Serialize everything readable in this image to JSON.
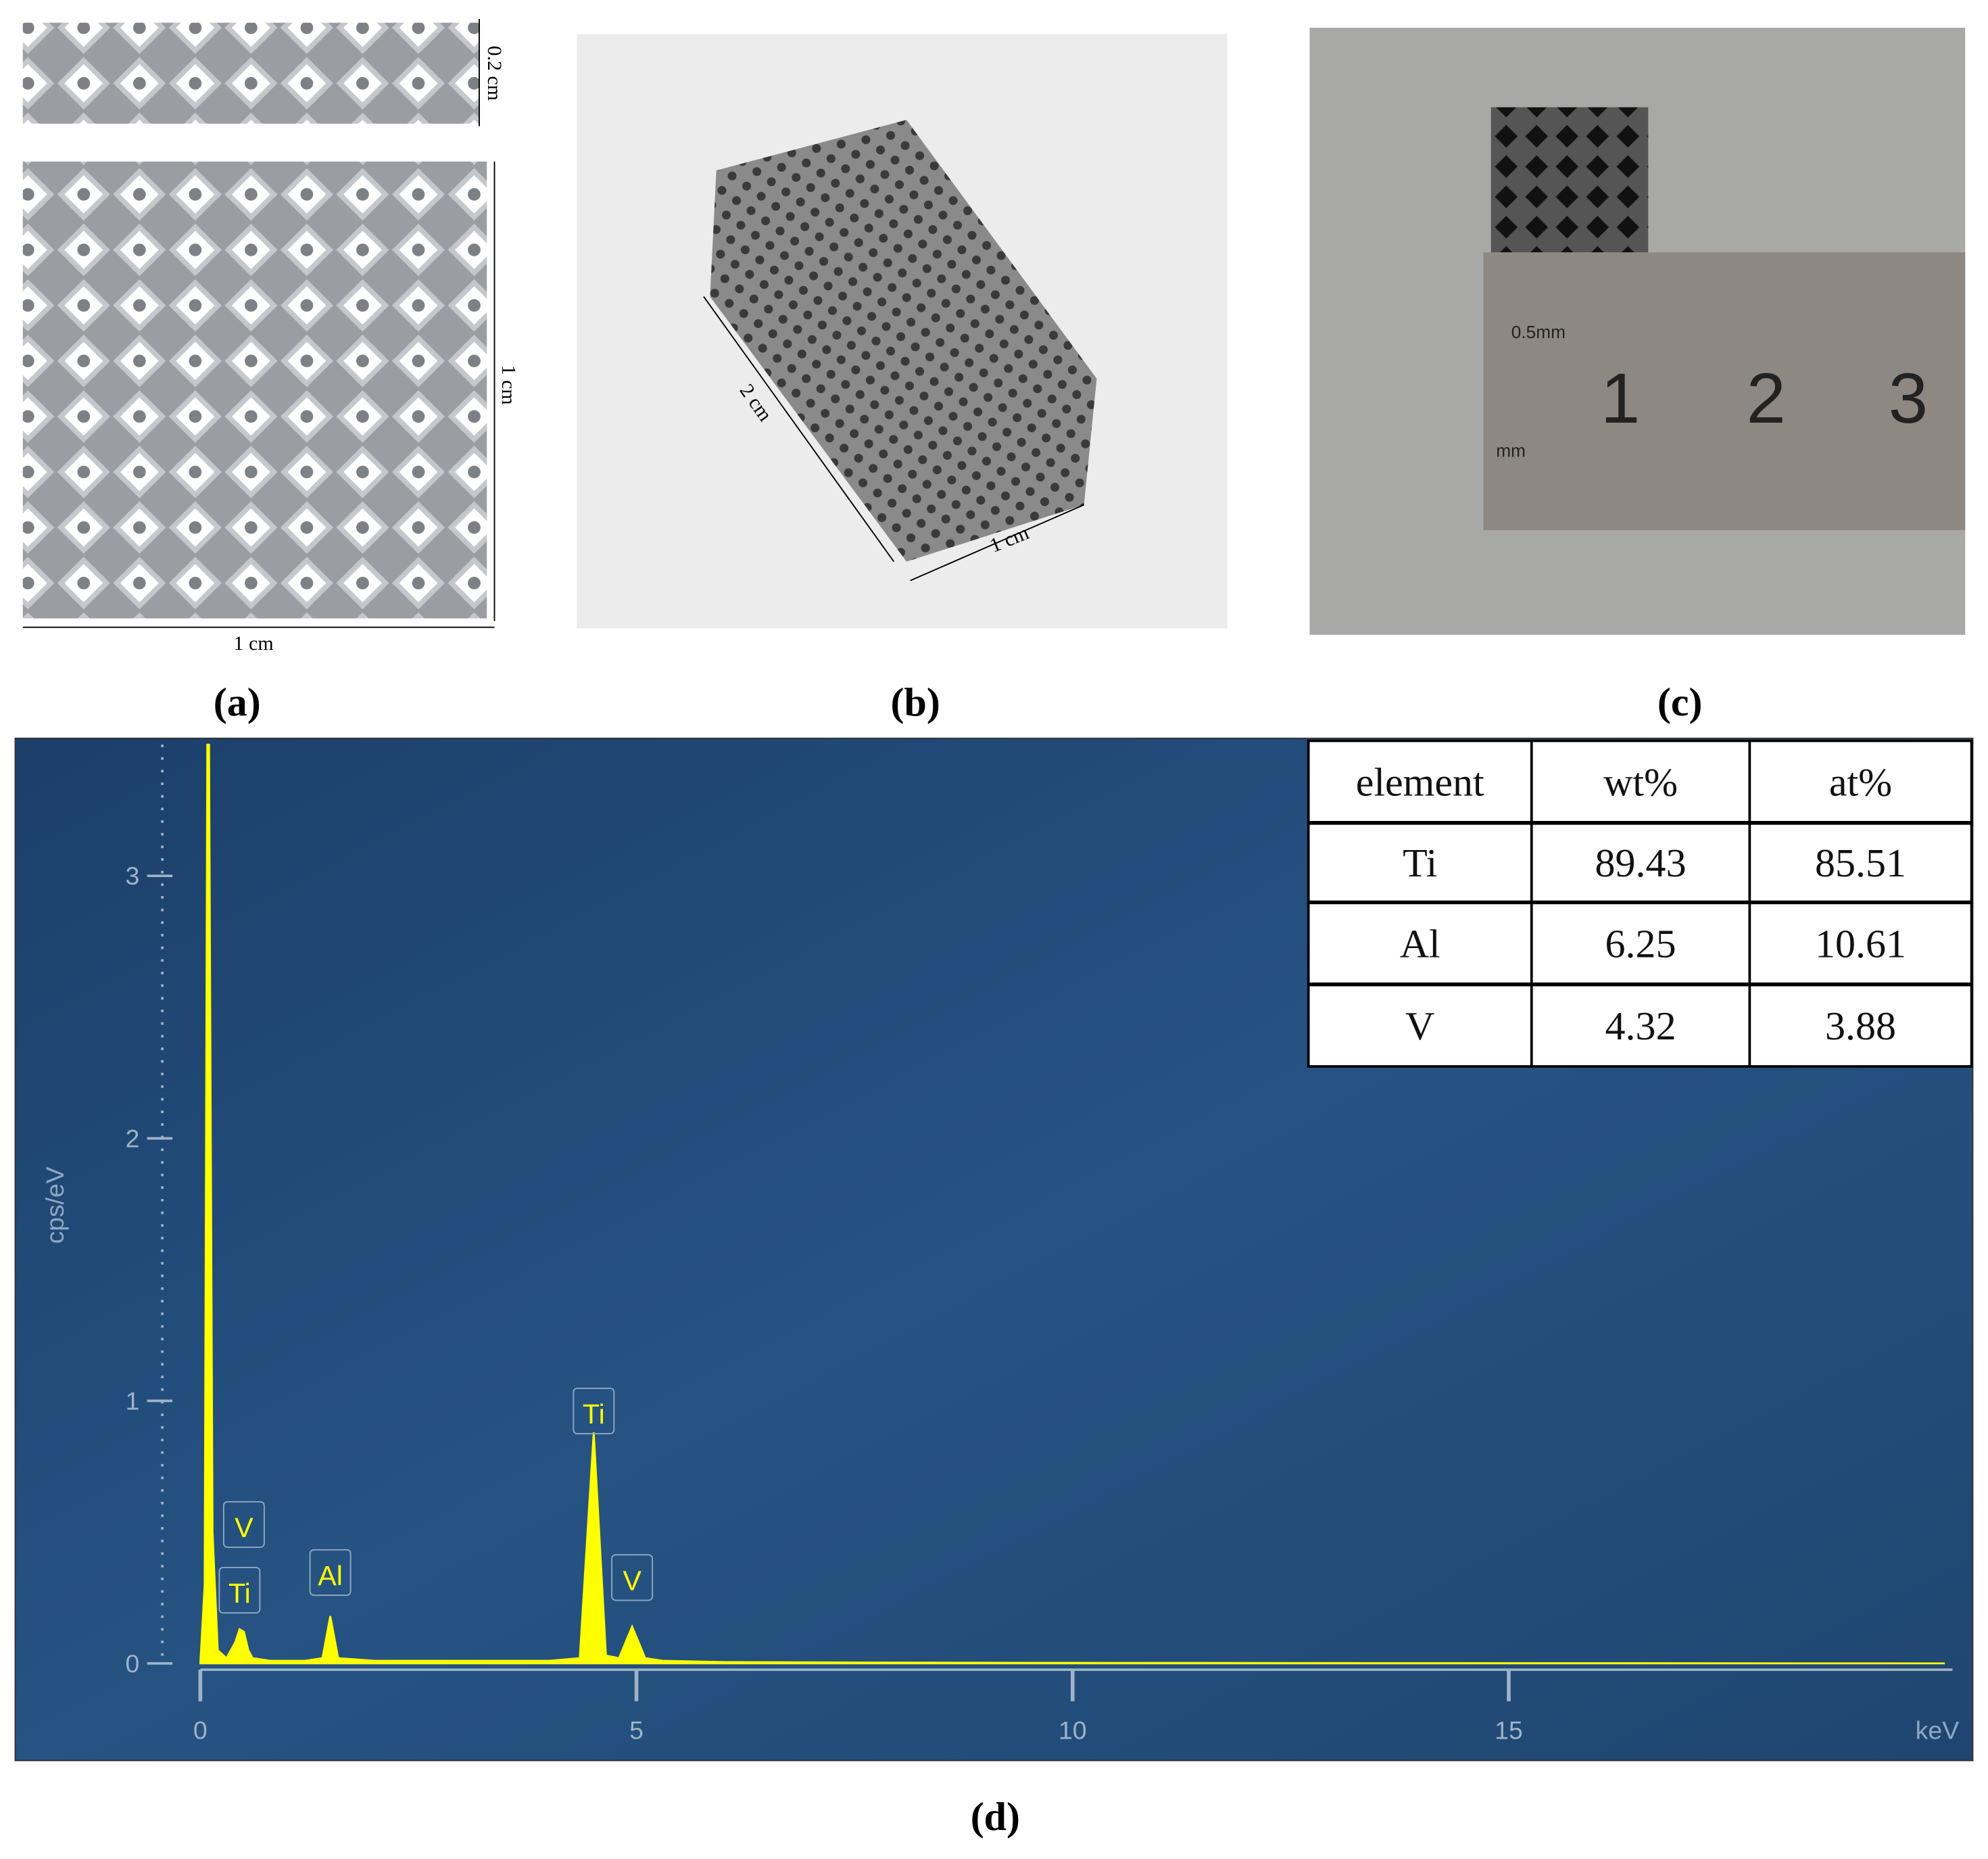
{
  "panels": {
    "a": {
      "label": "(a)",
      "height_dim": "0.2 cm",
      "side_dim": "1 cm",
      "width_dim": "1 cm"
    },
    "b": {
      "label": "(b)",
      "length_dim": "2 cm",
      "width_dim": "1 cm"
    },
    "c": {
      "label": "(c)",
      "ruler_top": "0.5mm",
      "ruler_numbers": [
        "1",
        "2",
        "3"
      ],
      "ruler_unit": "mm"
    },
    "d": {
      "label": "(d)"
    }
  },
  "table": {
    "header": [
      "element",
      "wt%",
      "at%"
    ],
    "rows": [
      [
        "Ti",
        "89.43",
        "85.51"
      ],
      [
        "Al",
        "6.25",
        "10.61"
      ],
      [
        "V",
        "4.32",
        "3.88"
      ]
    ]
  },
  "chart_data": {
    "type": "area",
    "x_label": "keV",
    "y_label": "cps/eV",
    "color": "#ffff00",
    "x": [
      0,
      0.05,
      0.08,
      0.1,
      0.14,
      0.2,
      0.3,
      0.4,
      0.45,
      0.5,
      0.55,
      0.6,
      0.8,
      1.2,
      1.4,
      1.49,
      1.58,
      2,
      3,
      4,
      4.35,
      4.51,
      4.65,
      4.8,
      4.95,
      5.1,
      5.3,
      6,
      8,
      10,
      20
    ],
    "values": [
      0,
      0.3,
      3.5,
      3.5,
      0.5,
      0.05,
      0.02,
      0.08,
      0.13,
      0.12,
      0.05,
      0.02,
      0.01,
      0.01,
      0.02,
      0.18,
      0.02,
      0.01,
      0.01,
      0.01,
      0.02,
      0.88,
      0.03,
      0.02,
      0.14,
      0.02,
      0.01,
      0.005,
      0.003,
      0.002,
      0
    ],
    "annotations": [
      {
        "text": "V",
        "x": 0.5
      },
      {
        "text": "Ti",
        "x": 0.45
      },
      {
        "text": "Al",
        "x": 1.49
      },
      {
        "text": "Ti",
        "x": 4.51
      },
      {
        "text": "V",
        "x": 4.95
      }
    ],
    "xlim": [
      0,
      20
    ],
    "ylim": [
      0,
      3.5
    ],
    "xticks": [
      0,
      5,
      10,
      15
    ],
    "yticks": [
      0,
      1,
      2,
      3
    ]
  }
}
